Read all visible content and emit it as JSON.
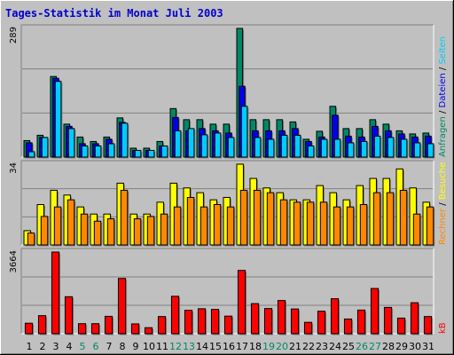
{
  "title": "Tages-Statistik im Monat Juli 2003",
  "colors": {
    "background": "#c0c0c0",
    "title": "#0000cc",
    "hits": "#008866",
    "files": "#0000ee",
    "pages": "#00ccff",
    "visits": "#ffff00",
    "sites": "#ff8800",
    "kbytes": "#ff0000",
    "weekend_label": "#008866"
  },
  "chart_data": [
    {
      "type": "bar",
      "panel": "top",
      "title": "",
      "ymax_label": "289",
      "ylim": [
        0,
        289
      ],
      "categories": [
        "1",
        "2",
        "3",
        "4",
        "5",
        "6",
        "7",
        "8",
        "9",
        "10",
        "11",
        "12",
        "13",
        "14",
        "15",
        "16",
        "17",
        "18",
        "19",
        "20",
        "21",
        "22",
        "23",
        "24",
        "25",
        "26",
        "27",
        "28",
        "29",
        "30",
        "31"
      ],
      "weekend_days": [
        "5",
        "6",
        "12",
        "13",
        "19",
        "20",
        "26",
        "27"
      ],
      "legend": [
        "Anfragen",
        "/",
        "Dateien",
        "/",
        "Seiten"
      ],
      "series": [
        {
          "name": "Anfragen",
          "values": [
            37,
            49,
            181,
            74,
            45,
            35,
            45,
            88,
            20,
            20,
            35,
            109,
            84,
            84,
            74,
            74,
            289,
            84,
            84,
            84,
            79,
            40,
            58,
            114,
            64,
            64,
            84,
            74,
            59,
            52,
            54
          ]
        },
        {
          "name": "Dateien",
          "values": [
            32,
            44,
            177,
            69,
            30,
            30,
            40,
            78,
            15,
            15,
            25,
            89,
            59,
            64,
            59,
            54,
            159,
            59,
            59,
            59,
            64,
            35,
            45,
            94,
            47,
            45,
            69,
            59,
            52,
            45,
            47
          ]
        },
        {
          "name": "Seiten",
          "values": [
            12,
            44,
            170,
            64,
            25,
            25,
            30,
            76,
            15,
            15,
            25,
            59,
            64,
            50,
            54,
            44,
            114,
            44,
            40,
            49,
            49,
            25,
            40,
            40,
            32,
            35,
            47,
            44,
            40,
            32,
            30
          ]
        }
      ]
    },
    {
      "type": "bar",
      "panel": "middle",
      "title": "",
      "ymax_label": "34",
      "ylim": [
        0,
        34
      ],
      "categories": [
        "1",
        "2",
        "3",
        "4",
        "5",
        "6",
        "7",
        "8",
        "9",
        "10",
        "11",
        "12",
        "13",
        "14",
        "15",
        "16",
        "17",
        "18",
        "19",
        "20",
        "21",
        "22",
        "23",
        "24",
        "25",
        "26",
        "27",
        "28",
        "29",
        "30",
        "31"
      ],
      "legend": [
        "Rechner",
        "/",
        "Besuche"
      ],
      "series": [
        {
          "name": "Besuche",
          "values": [
            6,
            17,
            23,
            21,
            16,
            13,
            13,
            26,
            13,
            13,
            18,
            26,
            24,
            22,
            19,
            20,
            34,
            28,
            24,
            22,
            19,
            19,
            25,
            22,
            19,
            25,
            28,
            28,
            32,
            24,
            18
          ]
        },
        {
          "name": "Rechner",
          "values": [
            5,
            12,
            16,
            19,
            13,
            10,
            11,
            23,
            11,
            12,
            13,
            16,
            20,
            16,
            17,
            16,
            23,
            23,
            22,
            19,
            18,
            18,
            18,
            16,
            16,
            17,
            22,
            22,
            23,
            13,
            16
          ]
        }
      ]
    },
    {
      "type": "bar",
      "panel": "bottom",
      "title": "",
      "ymax_label": "3664",
      "ylim": [
        0,
        3664
      ],
      "categories": [
        "1",
        "2",
        "3",
        "4",
        "5",
        "6",
        "7",
        "8",
        "9",
        "10",
        "11",
        "12",
        "13",
        "14",
        "15",
        "16",
        "17",
        "18",
        "19",
        "20",
        "21",
        "22",
        "23",
        "24",
        "25",
        "26",
        "27",
        "28",
        "29",
        "30",
        "31"
      ],
      "legend": [
        "kB"
      ],
      "series": [
        {
          "name": "kB",
          "values": [
            470,
            810,
            3664,
            1660,
            450,
            450,
            780,
            2480,
            440,
            270,
            770,
            1680,
            1050,
            1120,
            1090,
            790,
            2840,
            1350,
            1130,
            1490,
            1110,
            510,
            1010,
            1570,
            660,
            1060,
            2030,
            1180,
            700,
            1390,
            770
          ]
        }
      ]
    }
  ]
}
